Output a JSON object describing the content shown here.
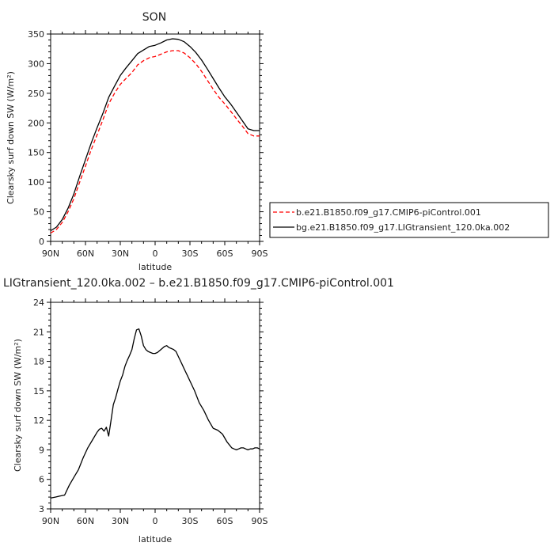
{
  "chart_data": [
    {
      "type": "line",
      "title": "SON",
      "xlabel": "latitude",
      "ylabel": "Clearsky surf down SW (W/m²)",
      "xlim": [
        90,
        -90
      ],
      "ylim": [
        0,
        350
      ],
      "xticks": [
        90,
        60,
        30,
        0,
        -30,
        -60,
        -90
      ],
      "xtick_labels": [
        "90N",
        "60N",
        "30N",
        "0",
        "30S",
        "60S",
        "90S"
      ],
      "yticks": [
        0,
        50,
        100,
        150,
        200,
        250,
        300,
        350
      ],
      "ytick_labels": [
        "0",
        "50",
        "100",
        "150",
        "200",
        "250",
        "300",
        "350"
      ],
      "legend_position": "right",
      "series": [
        {
          "name": "b.e21.B1850.f09_g17.CMIP6-piControl.001",
          "color": "#ff0000",
          "dash": "dashed",
          "x": [
            90,
            85,
            80,
            75,
            70,
            65,
            60,
            55,
            50,
            45,
            40,
            35,
            30,
            25,
            20,
            15,
            10,
            5,
            0,
            -5,
            -10,
            -15,
            -20,
            -25,
            -30,
            -35,
            -40,
            -45,
            -50,
            -55,
            -60,
            -65,
            -70,
            -75,
            -80,
            -85,
            -90
          ],
          "y": [
            14,
            20,
            32,
            50,
            72,
            100,
            127,
            155,
            180,
            205,
            232,
            250,
            265,
            275,
            285,
            298,
            305,
            310,
            312,
            316,
            320,
            322,
            322,
            318,
            310,
            300,
            287,
            272,
            257,
            243,
            232,
            220,
            207,
            195,
            182,
            178,
            178
          ]
        },
        {
          "name": "bg.e21.B1850.f09_g17.LIGtransient_120.0ka.002",
          "color": "#000000",
          "dash": "solid",
          "x": [
            90,
            85,
            80,
            75,
            70,
            65,
            60,
            55,
            50,
            45,
            40,
            35,
            30,
            25,
            20,
            15,
            10,
            5,
            0,
            -5,
            -10,
            -15,
            -20,
            -25,
            -30,
            -35,
            -40,
            -45,
            -50,
            -55,
            -60,
            -65,
            -70,
            -75,
            -80,
            -85,
            -90
          ],
          "y": [
            18,
            24,
            37,
            56,
            80,
            110,
            138,
            166,
            192,
            216,
            243,
            262,
            280,
            293,
            305,
            317,
            323,
            329,
            331,
            335,
            340,
            342,
            341,
            337,
            329,
            319,
            306,
            291,
            275,
            259,
            244,
            232,
            218,
            204,
            190,
            187,
            187
          ]
        }
      ]
    },
    {
      "type": "line",
      "title": "LIGtransient_120.0ka.002 – b.e21.B1850.f09_g17.CMIP6-piControl.001",
      "xlabel": "latitude",
      "ylabel": "Clearsky surf down SW (W/m²)",
      "xlim": [
        90,
        -90
      ],
      "ylim": [
        3,
        24
      ],
      "xticks": [
        90,
        60,
        30,
        0,
        -30,
        -60,
        -90
      ],
      "xtick_labels": [
        "90N",
        "60N",
        "30N",
        "0",
        "30S",
        "60S",
        "90S"
      ],
      "yticks": [
        3,
        6,
        9,
        12,
        15,
        18,
        21,
        24
      ],
      "ytick_labels": [
        "3",
        "6",
        "9",
        "12",
        "15",
        "18",
        "21",
        "24"
      ],
      "series": [
        {
          "color": "#000000",
          "dash": "solid",
          "x": [
            90,
            86,
            82,
            78,
            74,
            70,
            66,
            62,
            58,
            54,
            50,
            48,
            46,
            44,
            42,
            40,
            38,
            36,
            34,
            32,
            30,
            28,
            26,
            24,
            22,
            20,
            18,
            16,
            14,
            12,
            10,
            8,
            6,
            4,
            2,
            0,
            -2,
            -4,
            -6,
            -8,
            -10,
            -12,
            -14,
            -16,
            -18,
            -20,
            -22,
            -24,
            -26,
            -28,
            -30,
            -34,
            -38,
            -42,
            -46,
            -50,
            -54,
            -58,
            -60,
            -62,
            -64,
            -66,
            -68,
            -70,
            -72,
            -74,
            -76,
            -78,
            -80,
            -82,
            -84,
            -86,
            -88,
            -90
          ],
          "y": [
            4.1,
            4.2,
            4.3,
            4.4,
            5.4,
            6.2,
            7.0,
            8.2,
            9.2,
            10.0,
            10.8,
            11.1,
            11.2,
            10.9,
            11.3,
            10.4,
            12.0,
            13.6,
            14.3,
            15.2,
            16.0,
            16.6,
            17.5,
            18.1,
            18.6,
            19.2,
            20.3,
            21.2,
            21.3,
            20.6,
            19.6,
            19.2,
            19.0,
            18.9,
            18.8,
            18.8,
            18.9,
            19.1,
            19.3,
            19.5,
            19.6,
            19.4,
            19.3,
            19.2,
            19.0,
            18.5,
            18.0,
            17.5,
            17.0,
            16.5,
            16.0,
            15.0,
            13.8,
            13.0,
            12.0,
            11.2,
            11.0,
            10.6,
            10.2,
            9.8,
            9.5,
            9.2,
            9.1,
            9.0,
            9.1,
            9.2,
            9.2,
            9.1,
            9.0,
            9.1,
            9.1,
            9.2,
            9.2,
            9.1
          ]
        }
      ]
    }
  ]
}
